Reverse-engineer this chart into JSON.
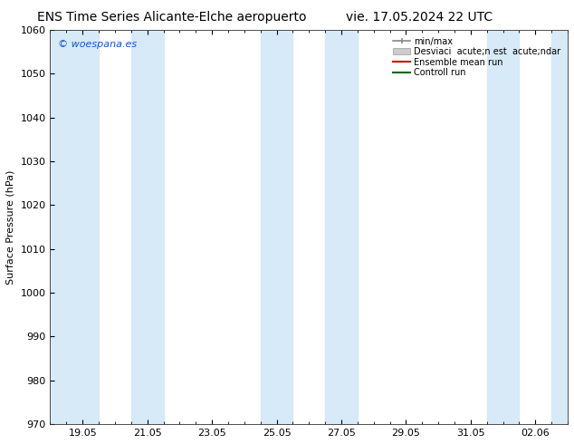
{
  "title_left": "ENS Time Series Alicante-Elche aeropuerto",
  "title_right": "vie. 17.05.2024 22 UTC",
  "ylabel": "Surface Pressure (hPa)",
  "ylim": [
    970,
    1060
  ],
  "yticks": [
    970,
    980,
    990,
    1000,
    1010,
    1020,
    1030,
    1040,
    1050,
    1060
  ],
  "xtick_labels": [
    "19.05",
    "21.05",
    "23.05",
    "25.05",
    "27.05",
    "29.05",
    "31.05",
    "02.06"
  ],
  "bg_color": "#ffffff",
  "shade_color": "#d6eaf8",
  "watermark": "© woespana.es",
  "legend_labels": [
    "min/max",
    "Desviaci  acute;n est  acute;ndar",
    "Ensemble mean run",
    "Controll run"
  ],
  "legend_colors": [
    "#aaaaaa",
    "#cccccc",
    "#cc0000",
    "#006600"
  ],
  "title_fontsize": 10,
  "ylabel_fontsize": 8,
  "tick_fontsize": 8,
  "legend_fontsize": 7
}
